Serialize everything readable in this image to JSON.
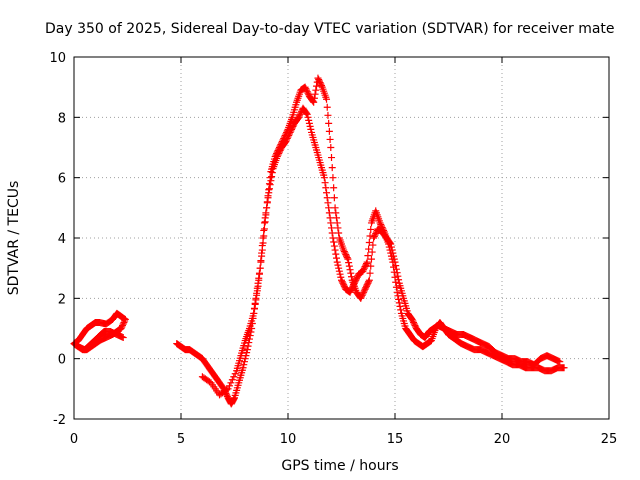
{
  "chart_data": {
    "type": "scatter",
    "title": "Day 350 of 2025, Sidereal Day-to-day VTEC variation (SDTVAR) for receiver mate",
    "xlabel": "GPS time / hours",
    "ylabel": "SDTVAR / TECUs",
    "xlim": [
      0,
      25
    ],
    "ylim": [
      -2,
      10
    ],
    "xticks": [
      0,
      5,
      10,
      15,
      20,
      25
    ],
    "yticks": [
      -2,
      0,
      2,
      4,
      6,
      8,
      10
    ],
    "grid": true,
    "marker": "+",
    "color": "#ff0000",
    "series": [
      {
        "name": "SDTVAR",
        "segments": [
          {
            "x": [
              0.0,
              0.2,
              0.4,
              0.6,
              0.8,
              1.0,
              1.2,
              1.5,
              1.8,
              2.0,
              2.2,
              2.4,
              2.2,
              2.0,
              1.8,
              1.5,
              1.2,
              1.0,
              0.8,
              0.6,
              0.4,
              0.2,
              0.0,
              0.2,
              0.5,
              0.8,
              1.1,
              1.4,
              1.7,
              2.0,
              2.3
            ],
            "y": [
              0.5,
              0.6,
              0.8,
              1.0,
              1.1,
              1.2,
              1.2,
              1.15,
              1.3,
              1.5,
              1.4,
              1.3,
              1.0,
              0.9,
              0.8,
              0.7,
              0.6,
              0.5,
              0.4,
              0.3,
              0.3,
              0.4,
              0.5,
              0.4,
              0.3,
              0.5,
              0.7,
              0.9,
              0.9,
              0.8,
              0.7
            ]
          },
          {
            "x": [
              4.8,
              5.0,
              5.2,
              5.4,
              5.6,
              5.8,
              6.0,
              6.2,
              6.4,
              6.6,
              6.8,
              7.0,
              7.2,
              7.35,
              7.5,
              7.7,
              7.9,
              8.1,
              8.3,
              8.5,
              8.7,
              8.9,
              9.1,
              9.3,
              9.5,
              9.7,
              9.9,
              10.1,
              10.3,
              10.5,
              10.7,
              10.9,
              11.1,
              11.3,
              11.5,
              11.7,
              11.9,
              12.1,
              12.3,
              12.5,
              12.7,
              12.9,
              13.1,
              13.3,
              13.5,
              13.7,
              13.9,
              14.1,
              14.3,
              14.5,
              14.7,
              14.9,
              15.1,
              15.3,
              15.5,
              15.7,
              15.9,
              16.1,
              16.3,
              16.5,
              16.7,
              16.9,
              17.1,
              17.3,
              17.5,
              17.7,
              17.9,
              18.1,
              18.4,
              18.7,
              19.0,
              19.3,
              19.6,
              19.9,
              20.2,
              20.5,
              20.8,
              21.1,
              21.4,
              21.7,
              22.0,
              22.3,
              22.6,
              22.9
            ],
            "y": [
              0.5,
              0.4,
              0.3,
              0.3,
              0.2,
              0.1,
              0.0,
              -0.2,
              -0.4,
              -0.6,
              -0.8,
              -1.0,
              -1.3,
              -1.5,
              -1.3,
              -0.8,
              -0.3,
              0.3,
              1.0,
              2.0,
              3.0,
              4.5,
              5.5,
              6.3,
              6.7,
              7.0,
              7.2,
              7.5,
              7.8,
              8.0,
              8.3,
              8.1,
              7.5,
              7.0,
              6.5,
              6.0,
              5.0,
              4.0,
              3.2,
              2.6,
              2.3,
              2.2,
              2.5,
              2.8,
              2.9,
              3.2,
              4.5,
              4.9,
              4.5,
              4.2,
              3.8,
              3.2,
              2.2,
              1.5,
              1.0,
              0.8,
              0.6,
              0.5,
              0.4,
              0.5,
              0.6,
              1.0,
              1.2,
              1.0,
              0.8,
              0.7,
              0.6,
              0.5,
              0.4,
              0.3,
              0.3,
              0.2,
              0.1,
              0.0,
              -0.1,
              -0.2,
              -0.2,
              -0.3,
              -0.3,
              -0.3,
              -0.4,
              -0.4,
              -0.3,
              -0.3
            ]
          },
          {
            "x": [
              6.0,
              6.4,
              6.8,
              7.2,
              7.6,
              7.8,
              8.0,
              8.2,
              8.4,
              8.6,
              8.8,
              9.0,
              9.2,
              9.4,
              9.6,
              9.8,
              10.0,
              10.2,
              10.4,
              10.6,
              10.8,
              11.0,
              11.2,
              11.4,
              11.6,
              11.8,
              12.0,
              12.2,
              12.4,
              12.6,
              12.8,
              13.0,
              13.2,
              13.4,
              13.6,
              13.8,
              14.0,
              14.2,
              14.4,
              14.6,
              14.8,
              15.0,
              15.2,
              15.4,
              15.6,
              15.8,
              16.0,
              16.2,
              16.4,
              16.6,
              16.8,
              17.0,
              17.3,
              17.6,
              17.9,
              18.2,
              18.5,
              18.8,
              19.1,
              19.4,
              19.7,
              20.0,
              20.3,
              20.6,
              20.9,
              21.2,
              21.5,
              21.8,
              22.1,
              22.4,
              22.7
            ],
            "y": [
              -0.6,
              -0.8,
              -1.2,
              -1.0,
              -0.4,
              0.1,
              0.6,
              1.0,
              1.5,
              2.4,
              3.6,
              5.0,
              6.2,
              6.7,
              7.0,
              7.3,
              7.6,
              8.0,
              8.5,
              8.9,
              9.0,
              8.7,
              8.5,
              9.3,
              9.0,
              8.6,
              7.0,
              5.0,
              4.0,
              3.6,
              3.3,
              2.6,
              2.2,
              2.0,
              2.3,
              2.6,
              4.0,
              4.3,
              4.2,
              4.0,
              3.8,
              3.2,
              2.5,
              2.0,
              1.5,
              1.3,
              1.0,
              0.8,
              0.7,
              0.9,
              1.0,
              1.1,
              1.0,
              0.9,
              0.8,
              0.8,
              0.7,
              0.6,
              0.5,
              0.4,
              0.2,
              0.1,
              0.0,
              0.0,
              -0.1,
              -0.1,
              -0.2,
              0.0,
              0.1,
              0.0,
              -0.1
            ]
          }
        ]
      }
    ]
  }
}
